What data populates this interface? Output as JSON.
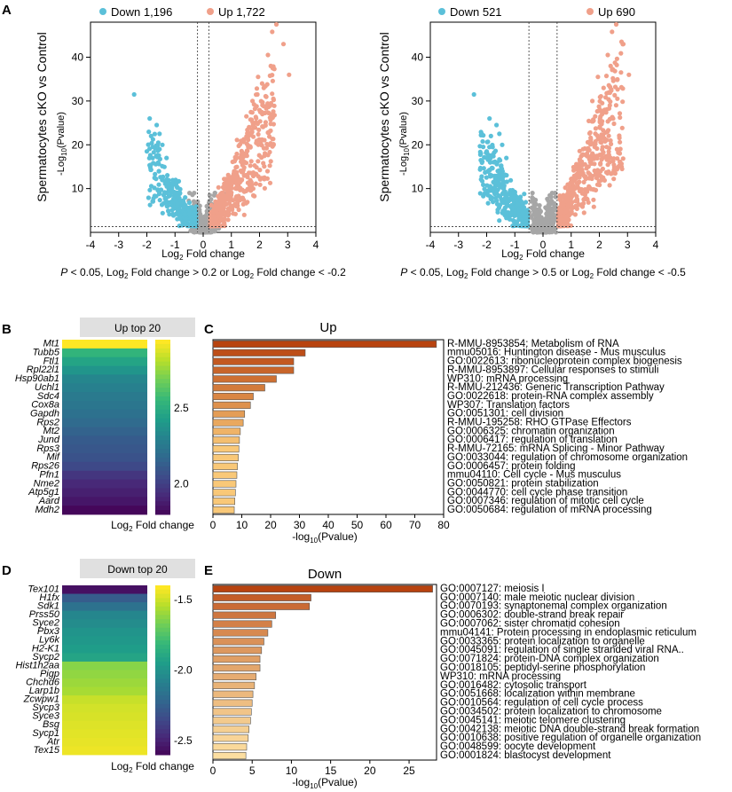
{
  "panel_labels": {
    "a": "A",
    "b": "B",
    "c": "C",
    "d": "D",
    "e": "E"
  },
  "colors": {
    "down": "#5bc0d9",
    "up": "#f0a08a",
    "ns": "#a6a6a6"
  },
  "chart_data": [
    {
      "id": "volcano1",
      "type": "scatter",
      "legend": [
        {
          "label": "Down 1,196",
          "color": "#5bc0d9"
        },
        {
          "label": "Up 1,722",
          "color": "#f0a08a"
        }
      ],
      "legend_placement": "top",
      "ylabel_title": "Spermatocytes cKO vs Control",
      "ylabel": {
        "base": "-Log",
        "sub": "10",
        "rest": "(Pvalue)"
      },
      "xlabel": {
        "base": "Log",
        "sub": "2",
        "rest": " Fold change"
      },
      "xlim": [
        -4,
        4
      ],
      "ylim": [
        0,
        48
      ],
      "xticks": [
        -4,
        -3,
        -2,
        -1,
        0,
        1,
        2,
        3,
        4
      ],
      "yticks": [
        10,
        20,
        30,
        40
      ],
      "fc_threshold": 0.2,
      "p_threshold_line": 1.3,
      "caption": {
        "p": "P",
        "pre": " < 0.05, Log",
        "sub1": "2",
        "mid": " Fold change > 0.2 or Log",
        "sub2": "2",
        "post": " Fold change < -0.2"
      },
      "highlight_points": {
        "up": [
          [
            2.6,
            47.5
          ],
          [
            2.45,
            45.8
          ],
          [
            2.85,
            43.0
          ],
          [
            3.05,
            36.0
          ],
          [
            2.3,
            40.5
          ],
          [
            1.95,
            35.5
          ],
          [
            2.15,
            33.0
          ],
          [
            2.4,
            38.0
          ],
          [
            1.75,
            30.0
          ],
          [
            2.1,
            27.0
          ]
        ],
        "down": [
          [
            -2.45,
            31.5
          ],
          [
            -1.9,
            26.0
          ],
          [
            -1.65,
            24.5
          ],
          [
            -1.55,
            22.5
          ],
          [
            -1.85,
            22.0
          ],
          [
            -1.45,
            20.0
          ],
          [
            -2.0,
            18.5
          ],
          [
            -1.3,
            17.0
          ]
        ]
      }
    },
    {
      "id": "volcano2",
      "type": "scatter",
      "legend": [
        {
          "label": "Down 521",
          "color": "#5bc0d9"
        },
        {
          "label": "Up 690",
          "color": "#f0a08a"
        }
      ],
      "legend_placement": "top",
      "ylabel_title": "Spermatocytes cKO vs Control",
      "ylabel": {
        "base": "-Log",
        "sub": "10",
        "rest": "(Pvalue)"
      },
      "xlabel": {
        "base": "Log",
        "sub": "2",
        "rest": " Fold change"
      },
      "xlim": [
        -4,
        4
      ],
      "ylim": [
        0,
        48
      ],
      "xticks": [
        -4,
        -3,
        -2,
        -1,
        0,
        1,
        2,
        3,
        4
      ],
      "yticks": [
        10,
        20,
        30,
        40
      ],
      "fc_threshold": 0.5,
      "p_threshold_line": 1.3,
      "caption": {
        "p": "P",
        "pre": " < 0.05, Log",
        "sub1": "2",
        "mid": " Fold change > 0.5 or Log",
        "sub2": "2",
        "post": " Fold change < -0.5"
      },
      "highlight_points": {
        "up": [
          [
            2.6,
            47.5
          ],
          [
            2.45,
            45.8
          ],
          [
            2.85,
            43.0
          ],
          [
            3.05,
            36.0
          ],
          [
            2.3,
            40.5
          ],
          [
            1.95,
            35.5
          ],
          [
            2.15,
            33.0
          ],
          [
            2.4,
            38.0
          ],
          [
            1.75,
            30.0
          ],
          [
            2.1,
            27.0
          ]
        ],
        "down": [
          [
            -2.45,
            31.5
          ],
          [
            -1.9,
            26.0
          ],
          [
            -1.65,
            24.5
          ],
          [
            -1.55,
            22.5
          ],
          [
            -1.85,
            22.0
          ],
          [
            -1.45,
            20.0
          ],
          [
            -2.0,
            18.5
          ],
          [
            -1.3,
            17.0
          ]
        ]
      }
    },
    {
      "id": "heat_up",
      "type": "heatmap",
      "title": "Up top 20",
      "genes": [
        "Mt1",
        "Tubb5",
        "Ftl1",
        "Rpl22l1",
        "Hsp90ab1",
        "Uchl1",
        "Sdc4",
        "Cox8a",
        "Gapdh",
        "Rps2",
        "Mt2",
        "Jund",
        "Rps3",
        "Mif",
        "Rps26",
        "Pfn1",
        "Nme2",
        "Atp5g1",
        "Aard",
        "Mdh2"
      ],
      "values": [
        2.95,
        2.55,
        2.47,
        2.4,
        2.33,
        2.3,
        2.27,
        2.25,
        2.23,
        2.2,
        2.16,
        2.13,
        2.11,
        2.09,
        2.05,
        1.98,
        1.93,
        1.9,
        1.87,
        1.82
      ],
      "colorbar_ticks": [
        2.5,
        2.0
      ],
      "vmin": 1.8,
      "vmax": 2.95,
      "colorbar_label": {
        "base": "Log",
        "sub": "2",
        "rest": " Fold change"
      }
    },
    {
      "id": "bar_up",
      "type": "bar",
      "orientation": "horizontal",
      "title": "Up",
      "xlabel": {
        "base": "-log",
        "sub": "10",
        "rest": "(Pvalue)"
      },
      "xlim": [
        0,
        80
      ],
      "xticks": [
        0,
        10,
        20,
        30,
        40,
        50,
        60,
        70,
        80
      ],
      "categories": [
        "R-MMU-8953854: Metabolism of RNA",
        "mmu05016: Huntington disease - Mus musculus",
        "GO:0022613: ribonucleoprotein complex biogenesis",
        "R-MMU-8953897: Cellular responses to stimuli",
        "WP310: mRNA processing",
        "R-MMU-212436: Generic Transcription Pathway",
        "GO:0022618: protein-RNA complex assembly",
        "WP307: Translation factors",
        "GO:0051301: cell division",
        "R-MMU-195258: RHO GTPase Effectors",
        "GO:0006325: chromatin organization",
        "GO:0006417: regulation of translation",
        "R-MMU-72165: mRNA Splicing - Minor Pathway",
        "GO:0033044: regulation of chromosome organization",
        "GO:0006457: protein folding",
        "mmu04110: Cell cycle - Mus musculus",
        "GO:0050821: protein stabilization",
        "GO:0044770: cell cycle phase transition",
        "GO:0007346: regulation of mitotic cell cycle",
        "GO:0050684: regulation of mRNA processing"
      ],
      "values": [
        77.5,
        32,
        28,
        28,
        22,
        18,
        14,
        13,
        11,
        10.5,
        9.5,
        9.2,
        9,
        8.8,
        8.5,
        8.3,
        8,
        7.8,
        7.6,
        7.4
      ]
    },
    {
      "id": "heat_down",
      "type": "heatmap",
      "title": "Down top 20",
      "genes": [
        "Tex101",
        "H1fx",
        "Sdk1",
        "Prss50",
        "Syce2",
        "Pbx3",
        "Ly6k",
        "H2-K1",
        "Sycp2",
        "Hist1h2aa",
        "Pigp",
        "Chchd6",
        "Larp1b",
        "Zcwpw1",
        "Sycp3",
        "Syce3",
        "Bsg",
        "Sycp1",
        "Atr",
        "Tex15"
      ],
      "values": [
        -2.55,
        -2.25,
        -2.15,
        -2.05,
        -2.02,
        -1.98,
        -1.96,
        -1.94,
        -1.9,
        -1.62,
        -1.6,
        -1.58,
        -1.56,
        -1.5,
        -1.48,
        -1.47,
        -1.46,
        -1.45,
        -1.44,
        -1.43
      ],
      "colorbar_ticks": [
        -1.5,
        -2.0,
        -2.5
      ],
      "vmin": -2.6,
      "vmax": -1.4,
      "colorbar_label": {
        "base": "Log",
        "sub": "2",
        "rest": " Fold change"
      }
    },
    {
      "id": "bar_down",
      "type": "bar",
      "orientation": "horizontal",
      "title": "Down",
      "xlabel": {
        "base": "-log",
        "sub": "10",
        "rest": "(Pvalue)"
      },
      "xlim": [
        0,
        28.5
      ],
      "xticks": [
        0,
        5,
        10,
        15,
        20,
        25
      ],
      "categories": [
        "GO:0007127: meiosis I",
        "GO:0007140: male meiotic nuclear division",
        "GO:0070193: synaptonemal complex organization",
        "GO:0006302: double-strand break repair",
        "GO:0007062: sister chromatid cohesion",
        "mmu04141: Protein processing in endoplasmic reticulum",
        "GO:0033365: protein localization to organelle",
        "GO:0045091: regulation of single stranded viral RNA..",
        "GO:0071824: protein-DNA complex organization",
        "GO:0018105: peptidyl-serine phosphorylation",
        "WP310: mRNA processing",
        "GO:0016482: cytosolic transport",
        "GO:0051668: localization within membrane",
        "GO:0010564: regulation of cell cycle process",
        "GO:0034502: protein localization to chromosome",
        "GO:0045141: meiotic telomere clustering",
        "GO:0042138: meiotic DNA double-strand break formation",
        "GO:0010638: positive regulation of organelle organization",
        "GO:0048599: oocyte development",
        "GO:0001824: blastocyst development"
      ],
      "values": [
        28,
        12.5,
        12.3,
        8,
        7.5,
        7,
        6.5,
        6.2,
        6,
        6,
        5.5,
        5.3,
        5.1,
        5,
        4.9,
        4.8,
        4.6,
        4.5,
        4.3,
        4.2
      ]
    }
  ]
}
